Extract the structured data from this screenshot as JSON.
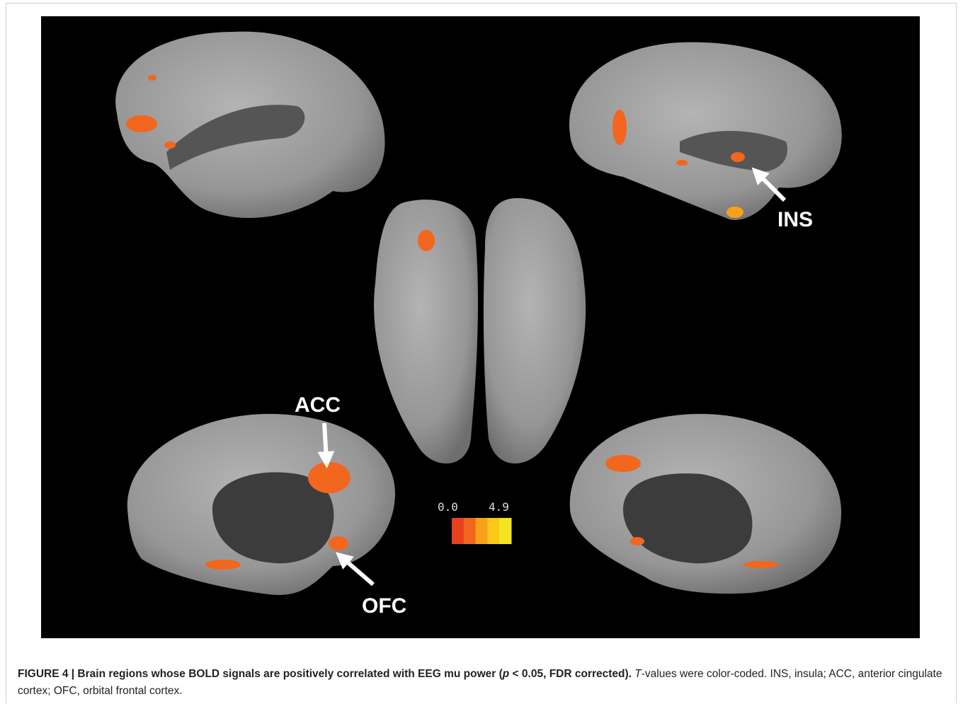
{
  "figure": {
    "labels": {
      "ins": "INS",
      "acc": "ACC",
      "ofc": "OFC"
    },
    "colorbar": {
      "min_label": "0.0",
      "max_label": "4.9",
      "colors": [
        "#e8401c",
        "#f2661e",
        "#f9a01b",
        "#fbc81a",
        "#f4e425"
      ]
    },
    "caption": {
      "segments": [
        {
          "text": "FIGURE 4 | Brain regions whose BOLD signals are positively correlated with EEG mu power (",
          "style": "bold"
        },
        {
          "text": "p",
          "style": "bold-italic"
        },
        {
          "text": " < 0.05, FDR corrected).",
          "style": "bold"
        },
        {
          "text": " ",
          "style": "normal"
        },
        {
          "text": "T",
          "style": "italic"
        },
        {
          "text": "-values were color-coded. INS, insula; ACC, anterior cingulate cortex; OFC, orbital frontal cortex.",
          "style": "normal"
        }
      ]
    }
  }
}
